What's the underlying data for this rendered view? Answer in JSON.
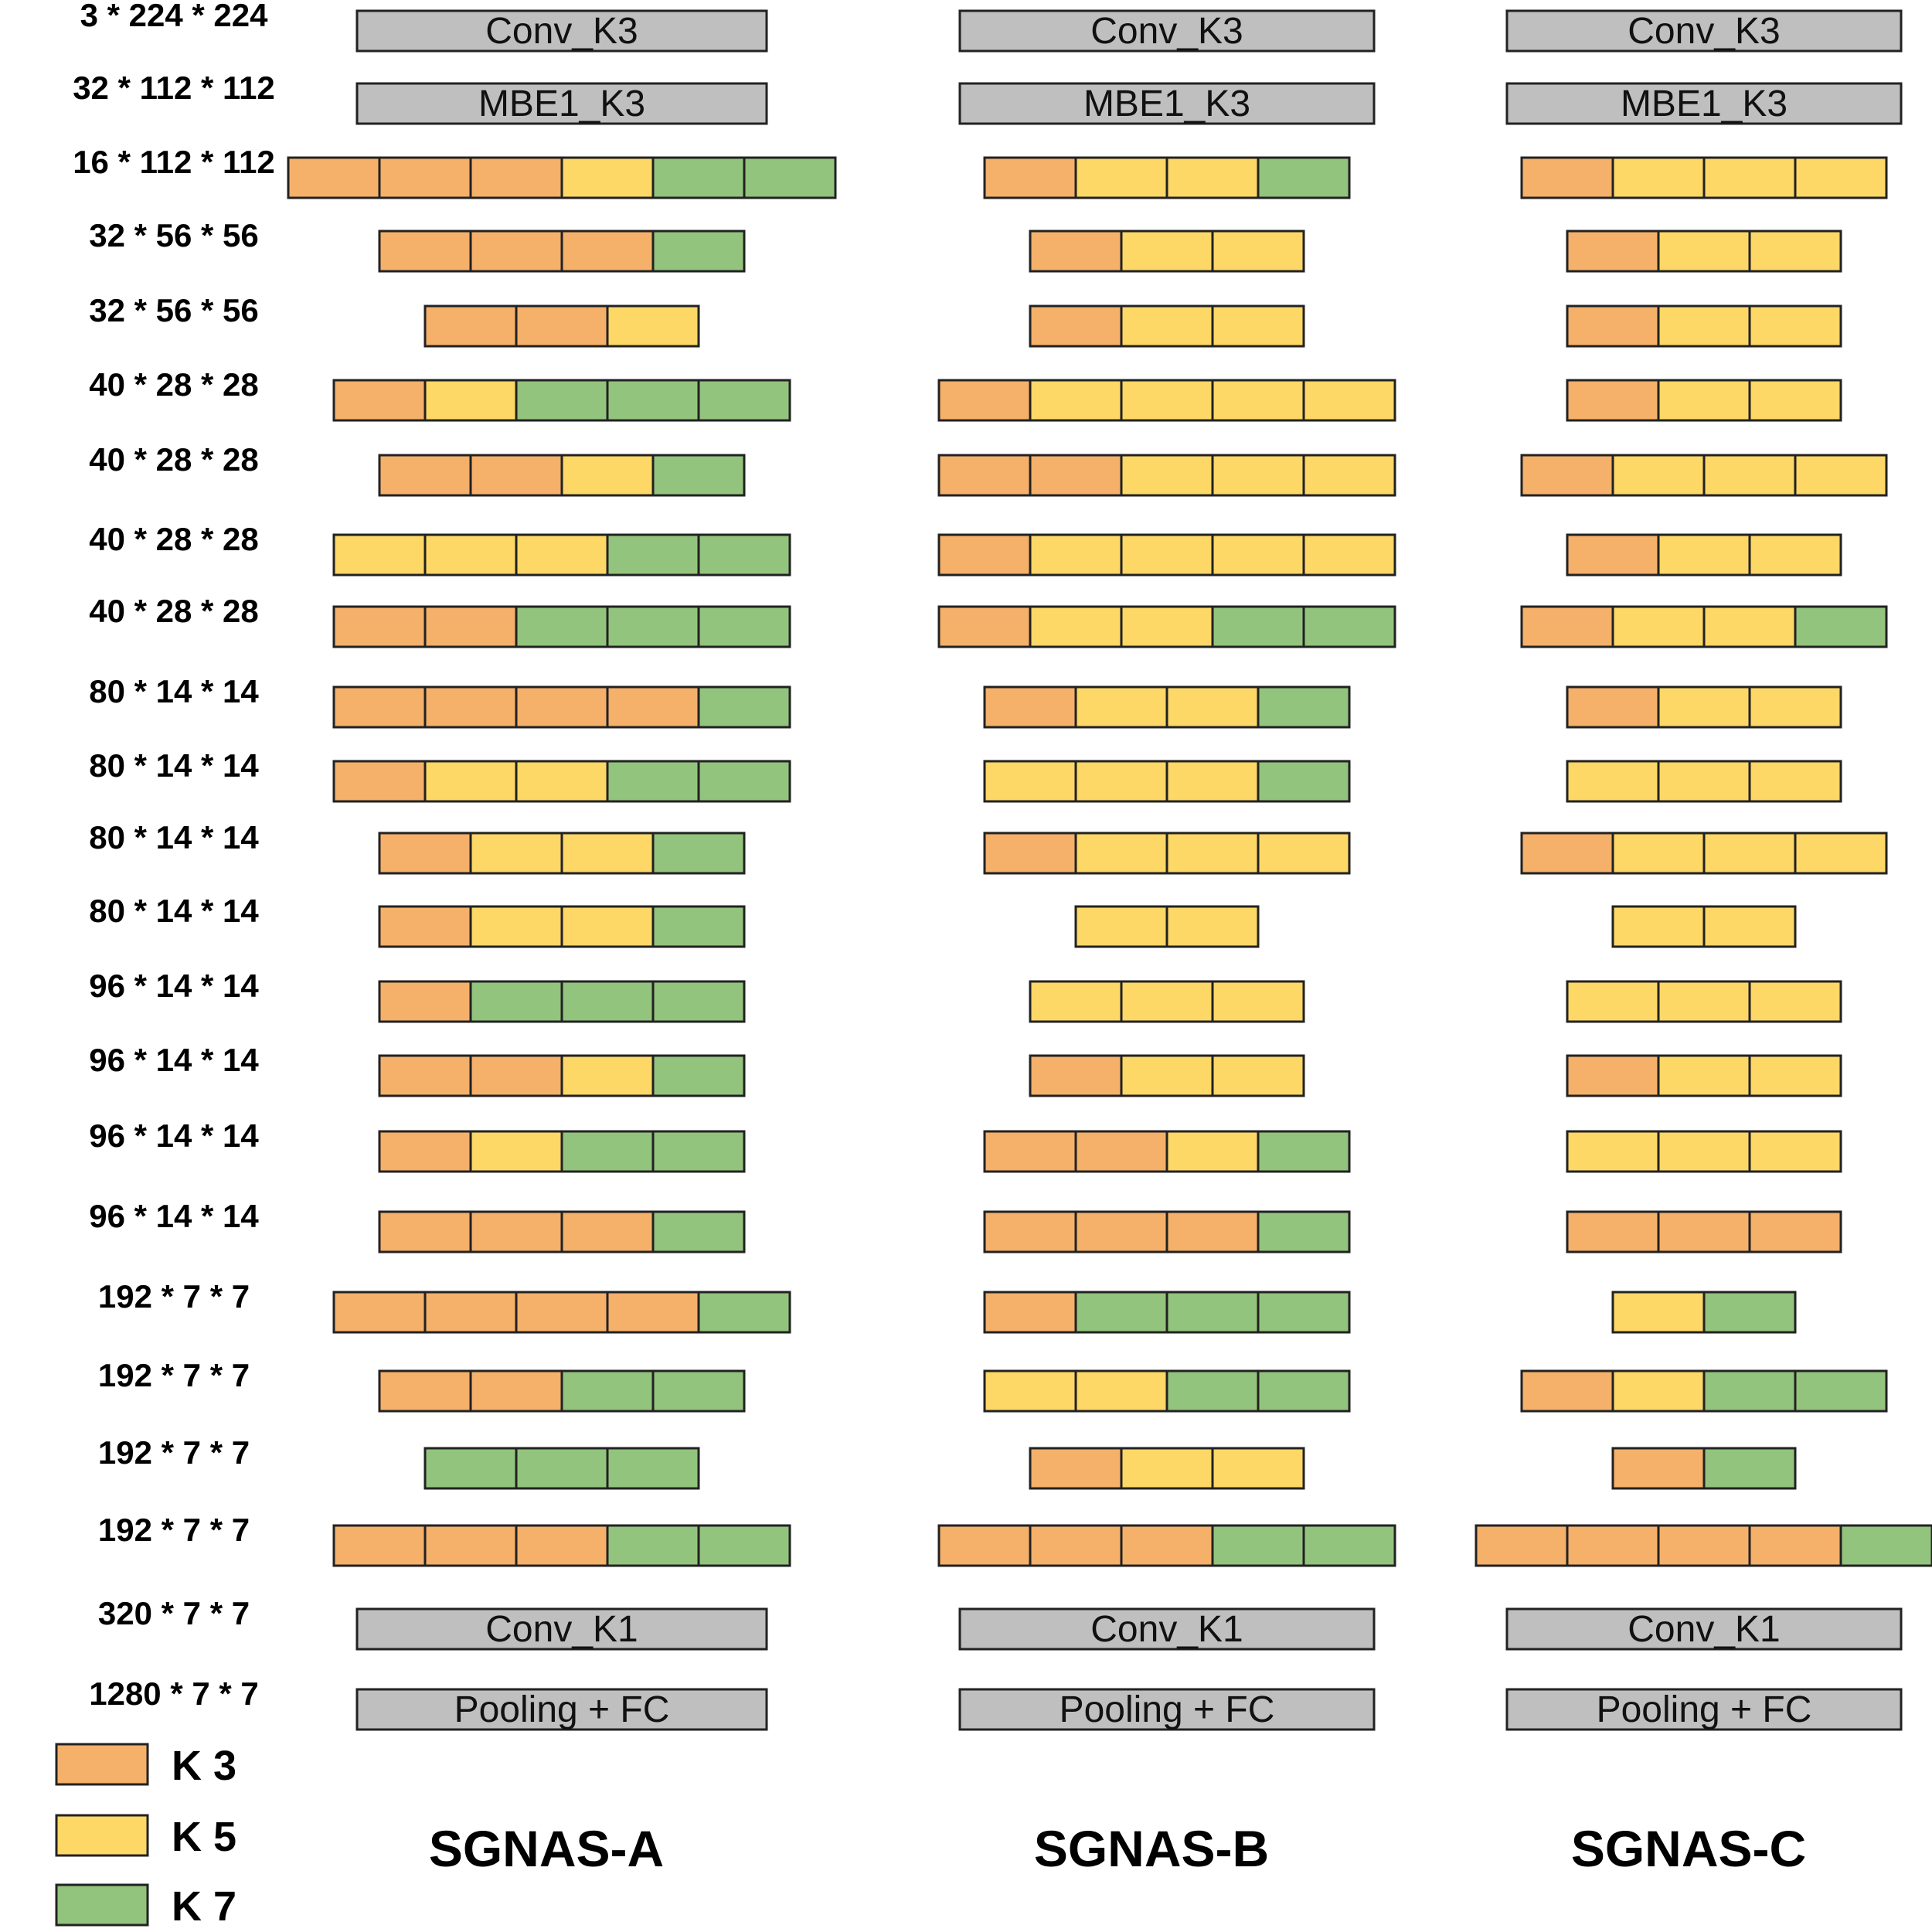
{
  "colors": {
    "K3": "#F5B06A",
    "K5": "#FDD866",
    "K7": "#93C47D",
    "gray": "#BFBFBF",
    "stroke": "#222222"
  },
  "legend": [
    {
      "key": "K3",
      "label": "K 3"
    },
    {
      "key": "K5",
      "label": "K 5"
    },
    {
      "key": "K7",
      "label": "K 7"
    }
  ],
  "shapes": [
    "3 * 224 * 224",
    "32 * 112 * 112",
    "16 * 112 * 112",
    "32 * 56 * 56",
    "32 * 56 * 56",
    "40 * 28 * 28",
    "40 * 28 * 28",
    "40 * 28 * 28",
    "40 * 28 * 28",
    "80 * 14 * 14",
    "80 * 14 * 14",
    "80 * 14 * 14",
    "80 * 14 * 14",
    "96 * 14 * 14",
    "96 * 14 * 14",
    "96 * 14 * 14",
    "96 * 14 * 14",
    "192 * 7 * 7",
    "192 * 7 * 7",
    "192 * 7 * 7",
    "192 * 7 * 7",
    "320 * 7 * 7",
    "1280 * 7 * 7"
  ],
  "fixed_blocks": {
    "first": "Conv_K3",
    "second": "MBE1_K3",
    "last_conv": "Conv_K1",
    "head": "Pooling + FC"
  },
  "architectures": [
    {
      "name": "SGNAS-A",
      "layers": [
        [
          "K3",
          "K3",
          "K3",
          "K5",
          "K7",
          "K7"
        ],
        [
          "K3",
          "K3",
          "K3",
          "K7"
        ],
        [
          "K3",
          "K3",
          "K5"
        ],
        [
          "K3",
          "K5",
          "K7",
          "K7",
          "K7"
        ],
        [
          "K3",
          "K3",
          "K5",
          "K7"
        ],
        [
          "K5",
          "K5",
          "K5",
          "K7",
          "K7"
        ],
        [
          "K3",
          "K3",
          "K7",
          "K7",
          "K7"
        ],
        [
          "K3",
          "K3",
          "K3",
          "K3",
          "K7"
        ],
        [
          "K3",
          "K5",
          "K5",
          "K7",
          "K7"
        ],
        [
          "K3",
          "K5",
          "K5",
          "K7"
        ],
        [
          "K3",
          "K5",
          "K5",
          "K7"
        ],
        [
          "K3",
          "K7",
          "K7",
          "K7"
        ],
        [
          "K3",
          "K3",
          "K5",
          "K7"
        ],
        [
          "K3",
          "K5",
          "K7",
          "K7"
        ],
        [
          "K3",
          "K3",
          "K3",
          "K7"
        ],
        [
          "K3",
          "K3",
          "K3",
          "K3",
          "K7"
        ],
        [
          "K3",
          "K3",
          "K7",
          "K7"
        ],
        [
          "K7",
          "K7",
          "K7"
        ],
        [
          "K3",
          "K3",
          "K3",
          "K7",
          "K7"
        ]
      ]
    },
    {
      "name": "SGNAS-B",
      "layers": [
        [
          "K3",
          "K5",
          "K5",
          "K7"
        ],
        [
          "K3",
          "K5",
          "K5"
        ],
        [
          "K3",
          "K5",
          "K5"
        ],
        [
          "K3",
          "K5",
          "K5",
          "K5",
          "K5"
        ],
        [
          "K3",
          "K3",
          "K5",
          "K5",
          "K5"
        ],
        [
          "K3",
          "K5",
          "K5",
          "K5",
          "K5"
        ],
        [
          "K3",
          "K5",
          "K5",
          "K7",
          "K7"
        ],
        [
          "K3",
          "K5",
          "K5",
          "K7"
        ],
        [
          "K5",
          "K5",
          "K5",
          "K7"
        ],
        [
          "K3",
          "K5",
          "K5",
          "K5"
        ],
        [
          "K5",
          "K5"
        ],
        [
          "K5",
          "K5",
          "K5"
        ],
        [
          "K3",
          "K5",
          "K5"
        ],
        [
          "K3",
          "K3",
          "K5",
          "K7"
        ],
        [
          "K3",
          "K3",
          "K3",
          "K7"
        ],
        [
          "K3",
          "K7",
          "K7",
          "K7"
        ],
        [
          "K5",
          "K5",
          "K7",
          "K7"
        ],
        [
          "K3",
          "K5",
          "K5"
        ],
        [
          "K3",
          "K3",
          "K3",
          "K7",
          "K7"
        ]
      ]
    },
    {
      "name": "SGNAS-C",
      "layers": [
        [
          "K3",
          "K5",
          "K5",
          "K5"
        ],
        [
          "K3",
          "K5",
          "K5"
        ],
        [
          "K3",
          "K5",
          "K5"
        ],
        [
          "K3",
          "K5",
          "K5"
        ],
        [
          "K3",
          "K5",
          "K5",
          "K5"
        ],
        [
          "K3",
          "K5",
          "K5"
        ],
        [
          "K3",
          "K5",
          "K5",
          "K7"
        ],
        [
          "K3",
          "K5",
          "K5"
        ],
        [
          "K5",
          "K5",
          "K5"
        ],
        [
          "K3",
          "K5",
          "K5",
          "K5"
        ],
        [
          "K5",
          "K5"
        ],
        [
          "K5",
          "K5",
          "K5"
        ],
        [
          "K3",
          "K5",
          "K5"
        ],
        [
          "K5",
          "K5",
          "K5"
        ],
        [
          "K3",
          "K3",
          "K3"
        ],
        [
          "K5",
          "K7"
        ],
        [
          "K3",
          "K5",
          "K7",
          "K7"
        ],
        [
          "K3",
          "K7"
        ],
        [
          "K3",
          "K3",
          "K3",
          "K3",
          "K7"
        ]
      ]
    }
  ]
}
